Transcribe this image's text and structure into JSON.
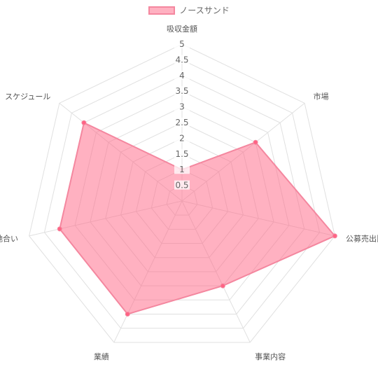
{
  "chart_data": {
    "type": "radar",
    "axes": [
      "吸収金額",
      "市場",
      "公募売出比",
      "事業内容",
      "業績",
      "地合い",
      "スケジュール"
    ],
    "series": [
      {
        "name": "ノースサンド",
        "values": [
          1,
          3,
          5,
          3,
          4,
          4,
          4
        ]
      }
    ],
    "ticks": [
      "0.5",
      "1",
      "1.5",
      "2",
      "2.5",
      "3",
      "3.5",
      "4",
      "4.5",
      "5"
    ],
    "rlim": [
      0,
      5
    ],
    "grid": true,
    "legend_position": "top",
    "colors": {
      "fill": "rgba(255,99,132,0.5)",
      "stroke": "#f4879f",
      "point": "#ff6384",
      "grid": "#e0e0e0",
      "text": "#666666"
    }
  }
}
